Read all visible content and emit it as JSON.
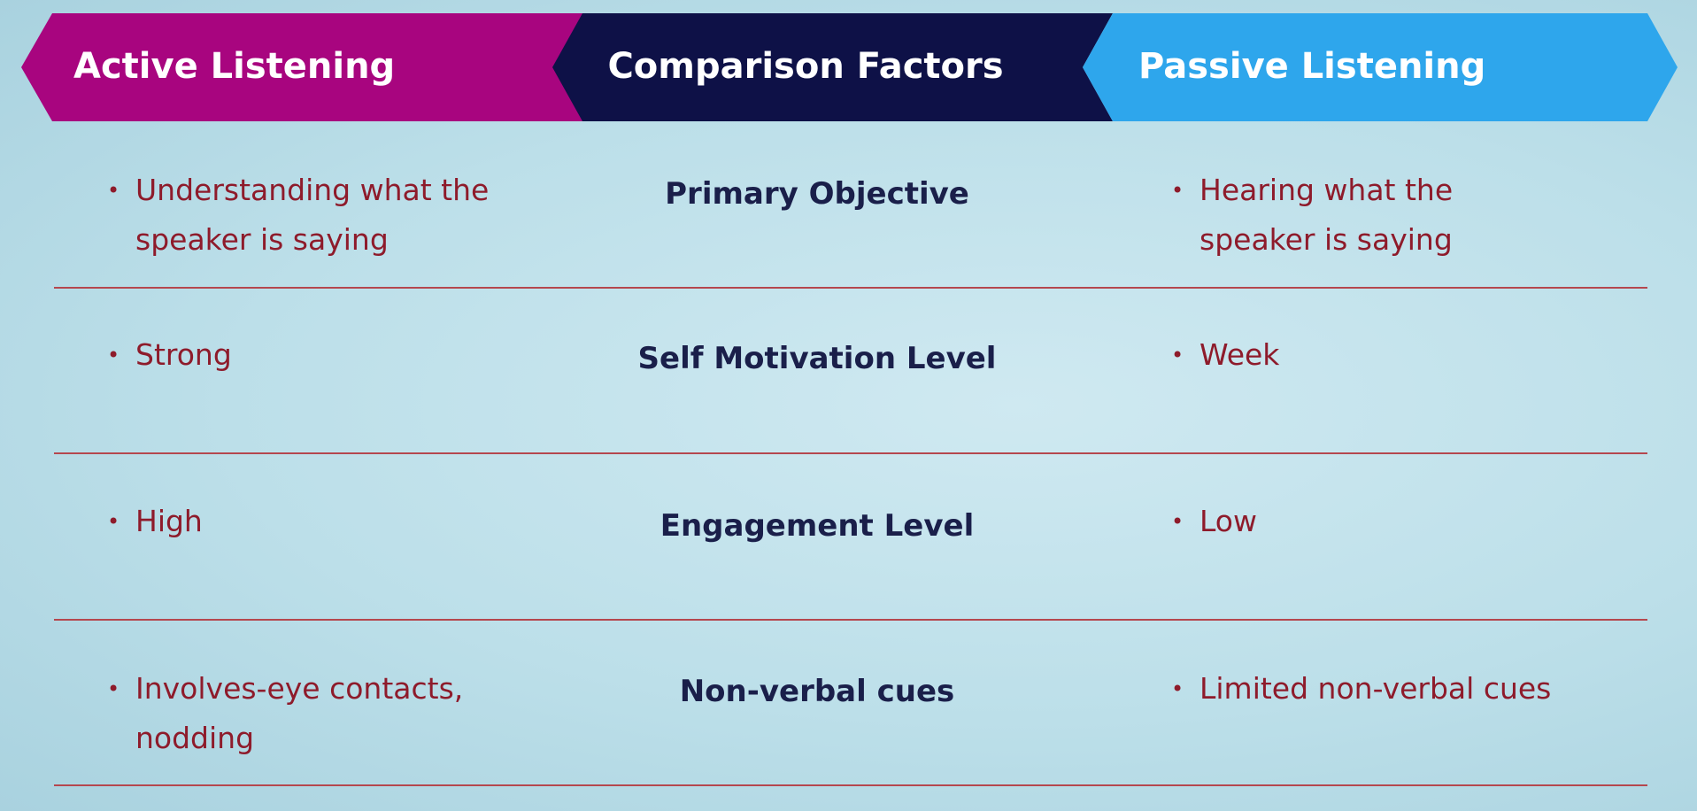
{
  "header": {
    "active": "Active Listening",
    "factors": "Comparison Factors",
    "passive": "Passive Listening"
  },
  "rows": [
    {
      "active": "Understanding what the speaker is saying",
      "factor": "Primary Objective",
      "passive": "Hearing what the speaker is saying"
    },
    {
      "active": "Strong",
      "factor": "Self Motivation Level",
      "passive": "Week"
    },
    {
      "active": "High",
      "factor": "Engagement Level",
      "passive": "Low"
    },
    {
      "active": "Involves-eye contacts, nodding",
      "factor": "Non-verbal cues",
      "passive": "Limited non-verbal cues"
    }
  ]
}
